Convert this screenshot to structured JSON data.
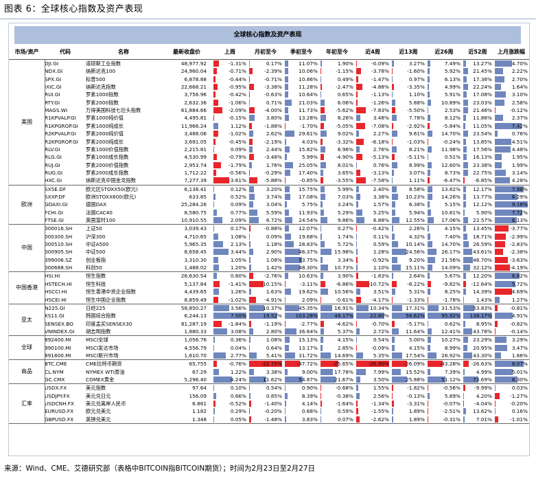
{
  "caption": "图表 6：全球核心指数及资产表现",
  "table_title": "全球核心指数及资产表现",
  "headers": [
    "市场/资产",
    "代码",
    "名称",
    "最新收盘价",
    "上周",
    "月初至今",
    "季初至今",
    "年初至今",
    "近4周",
    "近13周",
    "近26周",
    "近52周",
    "上月涨跌幅"
  ],
  "colors": {
    "positive_bar": "#6f87bd",
    "negative_bar": "#e8262b",
    "title_bg": "#aebedd"
  },
  "groups": [
    {
      "name": "美国",
      "rows": [
        {
          "code": "DJI.GI",
          "name": "道琼斯工业指数",
          "price": "48,977.92",
          "v": [
            "-1.31%",
            "0.17%",
            "11.07%",
            "1.90%",
            "-0.09%",
            "3.27%",
            "7.49%",
            "13.27%",
            "4.70%"
          ]
        },
        {
          "code": "NDX.GI",
          "name": "纳斯达克100",
          "price": "24,960.04",
          "v": [
            "-0.71%",
            "-2.39%",
            "10.06%",
            "-1.15%",
            "-3.78%",
            "-1.60%",
            "5.92%",
            "21.45%",
            "2.22%"
          ]
        },
        {
          "code": "SPX.GI",
          "name": "标普500",
          "price": "6,878.88",
          "v": [
            "-0.44%",
            "-0.71%",
            "10.86%",
            "0.49%",
            "-1.47%",
            "0.97%",
            "6.13%",
            "17.36%",
            "2.70%"
          ]
        },
        {
          "code": "IXIC.GI",
          "name": "纳斯达克指数",
          "price": "22,668.21",
          "v": [
            "-0.95%",
            "-3.38%",
            "11.28%",
            "-2.47%",
            "-4.88%",
            "-3.35%",
            "4.99%",
            "22.24%",
            "1.64%"
          ]
        },
        {
          "code": "RUI.GI",
          "name": "罗素1000指数",
          "price": "3,756.96",
          "v": [
            "-0.42%",
            "-0.63%",
            "10.64%",
            "0.65%",
            "-1.13%",
            "1.10%",
            "5.91%",
            "17.08%",
            "3.10%"
          ]
        },
        {
          "code": "RTY.GI",
          "name": "罗素2000指数",
          "price": "2,632.36",
          "v": [
            "-1.06%",
            "0.71%",
            "21.03%",
            "6.06%",
            "-1.26%",
            "5.88%",
            "10.89%",
            "23.03%",
            "2.58%"
          ]
        },
        {
          "code": "MAGS.WI",
          "name": "万得美国科技七巨头指数",
          "price": "61,884.66",
          "v": [
            "-2.09%",
            "-4.00%",
            "11.73%",
            "-5.62%",
            "-7.83%",
            "-5.50%",
            "2.53%",
            "21.46%",
            "-0.12%"
          ]
        },
        {
          "code": "R1KPVALP.GI",
          "name": "罗素1000纯价值",
          "price": "4,495.81",
          "v": [
            "-0.15%",
            "3.80%",
            "13.28%",
            "8.26%",
            "3.48%",
            "7.78%",
            "8.12%",
            "11.86%",
            "2.37%"
          ]
        },
        {
          "code": "R1KPGROP.GI",
          "name": "罗素1000纯成长",
          "price": "11,966.24",
          "v": [
            "1.12%",
            "-1.88%",
            "-1.70%",
            "-5.05%",
            "-7.08%",
            "-2.92%",
            "-5.84%",
            "11.05%",
            "7.42%"
          ]
        },
        {
          "code": "R2KPVALP.GI",
          "name": "罗素2000纯价值",
          "price": "3,488.06",
          "v": [
            "-1.02%",
            "2.62%",
            "29.61%",
            "9.02%",
            "2.27%",
            "9.61%",
            "14.70%",
            "23.54%",
            "0.76%"
          ]
        },
        {
          "code": "R2KPGROP.GI",
          "name": "罗素2000纯成长",
          "price": "3,691.05",
          "v": [
            "-0.45%",
            "-2.19%",
            "4.03%",
            "-3.32%",
            "-6.18%",
            "-1.03%",
            "-0.24%",
            "13.85%",
            "4.51%"
          ]
        },
        {
          "code": "RLV.GI",
          "name": "罗素1000价值指数",
          "price": "2,215.81",
          "v": [
            "0.09%",
            "2.44%",
            "15.82%",
            "6.96%",
            "2.76%",
            "8.21%",
            "11.98%",
            "17.56%",
            "4.48%"
          ]
        },
        {
          "code": "RLG.GI",
          "name": "罗素1000成长指数",
          "price": "4,530.99",
          "v": [
            "-0.79%",
            "-3.48%",
            "5.99%",
            "-4.90%",
            "-5.13%",
            "-5.11%",
            "0.51%",
            "16.13%",
            "1.95%"
          ]
        },
        {
          "code": "RUJ.GI",
          "name": "罗素2000价值指数",
          "price": "2,953.74",
          "v": [
            "-1.79%",
            "1.76%",
            "25.05%",
            "8.01%",
            "0.76%",
            "8.99%",
            "12.60%",
            "23.38%",
            "1.99%"
          ]
        },
        {
          "code": "RUG.GI",
          "name": "罗素2000成长指数",
          "price": "1,712.22",
          "v": [
            "-0.56%",
            "-0.29%",
            "17.40%",
            "3.65%",
            "-3.13%",
            "3.07%",
            "8.73%",
            "22.75%",
            "3.14%"
          ]
        },
        {
          "code": "HXC.GI",
          "name": "纳斯达克中国金龙指数",
          "price": "7,277.39",
          "v": [
            "-3.61%",
            "-5.88%",
            "-0.85%",
            "-3.55%",
            "-7.58%",
            "1.11%",
            "-6.47%",
            "-6.85%",
            "4.28%"
          ]
        }
      ]
    },
    {
      "name": "欧洲",
      "rows": [
        {
          "code": "SX5E.DF",
          "name": "欧元区STOXX50(欧元)",
          "price": "6,138.41",
          "v": [
            "0.12%",
            "3.20%",
            "15.75%",
            "5.99%",
            "2.40%",
            "8.58%",
            "13.82%",
            "12.17%",
            "7.98%"
          ]
        },
        {
          "code": "SXXP.DF",
          "name": "欧洲STOXX600(欧元)",
          "price": "633.85",
          "v": [
            "0.52%",
            "3.74%",
            "17.08%",
            "7.03%",
            "3.38%",
            "10.23%",
            "14.26%",
            "13.77%",
            "6.29%"
          ]
        },
        {
          "code": "GDAXI.GI",
          "name": "德国DAX",
          "price": "25,284.26",
          "v": [
            "0.09%",
            "3.04%",
            "5.75%",
            "3.24%",
            "1.57%",
            "6.38%",
            "5.15%",
            "12.12%",
            "9.16%"
          ]
        },
        {
          "code": "FCHI.GI",
          "name": "法国CAC40",
          "price": "8,580.75",
          "v": [
            "0.77%",
            "5.59%",
            "11.93%",
            "5.29%",
            "5.25%",
            "5.94%",
            "10.81%",
            "5.90%",
            "7.72%"
          ]
        },
        {
          "code": "FTSE.GI",
          "name": "英国富时100",
          "price": "10,910.55",
          "v": [
            "2.09%",
            "6.72%",
            "24.54%",
            "9.86%",
            "6.88%",
            "12.55%",
            "17.06%",
            "22.57%",
            "6.13%"
          ]
        }
      ]
    },
    {
      "name": "中国",
      "rows": [
        {
          "code": "000016.SH",
          "name": "上证50",
          "price": "3,039.43",
          "v": [
            "0.17%",
            "-0.88%",
            "12.07%",
            "0.27%",
            "-0.42%",
            "2.26%",
            "4.15%",
            "13.45%",
            "-3.77%"
          ]
        },
        {
          "code": "000300.SH",
          "name": "沪深300",
          "price": "4,710.65",
          "v": [
            "1.08%",
            "0.09%",
            "19.68%",
            "1.74%",
            "0.11%",
            "4.32%",
            "7.40%",
            "18.71%",
            "-2.99%"
          ]
        },
        {
          "code": "000510.SH",
          "name": "中证A500",
          "price": "5,965.35",
          "v": [
            "2.13%",
            "1.18%",
            "28.83%",
            "5.72%",
            "0.59%",
            "10.14%",
            "14.70%",
            "26.59%",
            "-2.83%"
          ]
        },
        {
          "code": "000905.SH",
          "name": "中证500",
          "price": "8,658.45",
          "v": [
            "3.44%",
            "2.90%",
            "46.37%",
            "15.98%",
            "1.28%",
            "24.56%",
            "26.17%",
            "43.61%",
            "-2.38%"
          ]
        },
        {
          "code": "399006.SZ",
          "name": "创业板指",
          "price": "3,310.30",
          "v": [
            "1.05%",
            "1.08%",
            "53.75%",
            "3.34%",
            "-0.92%",
            "9.20%",
            "21.56%",
            "46.70%",
            "-3.63%"
          ]
        },
        {
          "code": "000688.SH",
          "name": "科创50",
          "price": "1,488.02",
          "v": [
            "1.20%",
            "1.42%",
            "48.30%",
            "10.73%",
            "1.10%",
            "15.11%",
            "14.09%",
            "32.12%",
            "-4.19%"
          ]
        }
      ]
    },
    {
      "name": "中国香港",
      "rows": [
        {
          "code": "HSI.HI",
          "name": "恒生指数",
          "price": "26,630.54",
          "v": [
            "0.80%",
            "-2.76%",
            "10.63%",
            "3.90%",
            "-1.83%",
            "2.64%",
            "5.67%",
            "12.20%",
            "6.82%"
          ]
        },
        {
          "code": "HSTECH.HI",
          "name": "恒生科技",
          "price": "5,137.84",
          "v": [
            "-1.41%",
            "-10.15%",
            "-3.11%",
            "-6.86%",
            "-10.72%",
            "-8.22%",
            "-9.82%",
            "-12.64%",
            "5.72%"
          ]
        },
        {
          "code": "HSCCI.HI",
          "name": "恒生香港中资企业指数",
          "price": "4,439.65",
          "v": [
            "1.26%",
            "1.63%",
            "19.62%",
            "10.56%",
            "3.51%",
            "5.31%",
            "8.25%",
            "14.39%",
            "-4.69%"
          ]
        },
        {
          "code": "HSCEI.HI",
          "name": "恒生中国企业指数",
          "price": "8,859.49",
          "v": [
            "-1.02%",
            "-4.91%",
            "2.09%",
            "-0.61%",
            "-4.17%",
            "-1.33%",
            "-1.78%",
            "1.43%",
            "1.27%"
          ]
        }
      ]
    },
    {
      "name": "亚太",
      "rows": [
        {
          "code": "N225.GI",
          "name": "日经225",
          "price": "58,850.27",
          "v": [
            "3.56%",
            "10.37%",
            "45.35%",
            "16.91%",
            "10.34%",
            "17.31%",
            "31.53%",
            "53.83%",
            "-0.81%"
          ]
        },
        {
          "code": "KS11.GI",
          "name": "韩国综合指数",
          "price": "6,244.13",
          "v": [
            "7.50%",
            "19.52%",
            "103.28%",
            "48.17%",
            "22.80%",
            "56.62%",
            "95.92%",
            "138.17%",
            "4.91%"
          ]
        },
        {
          "code": "SENSEX.BO",
          "name": "印度孟买SENSEX30",
          "price": "81,287.19",
          "v": [
            "-1.84%",
            "-1.19%",
            "-2.77%",
            "-4.62%",
            "-0.70%",
            "-5.17%",
            "0.62%",
            "8.95%",
            "-0.82%"
          ]
        },
        {
          "code": "VNINDEX.GI",
          "name": "胡志明指数",
          "price": "1,880.33",
          "v": [
            "3.08%",
            "2.80%",
            "36.64%",
            "5.37%",
            "2.72%",
            "11.64%",
            "12.41%",
            "43.78%",
            "-0.14%"
          ]
        }
      ]
    },
    {
      "name": "全球",
      "rows": [
        {
          "code": "892400.MI",
          "name": "MSCI全球",
          "price": "1,056.76",
          "v": [
            "0.36%",
            "1.08%",
            "15.13%",
            "4.15%",
            "0.54%",
            "5.00%",
            "10.27%",
            "23.29%",
            "3.29%"
          ]
        },
        {
          "code": "990100.MI",
          "name": "MSCI发达市场",
          "price": "4,556.79",
          "v": [
            "0.04%",
            "0.64%",
            "13.17%",
            "2.85%",
            "-0.09%",
            "4.15%",
            "8.99%",
            "20.95%",
            "3.47%"
          ]
        },
        {
          "code": "891800.MI",
          "name": "MSCI新兴市场",
          "price": "1,610.70",
          "v": [
            "2.77%",
            "5.41%",
            "31.72%",
            "14.69%",
            "5.35%",
            "17.54%",
            "26.92%",
            "43.30%",
            "1.66%"
          ]
        }
      ]
    },
    {
      "name": "商品",
      "rows": [
        {
          "code": "BTC.CME",
          "name": "CME比特币期货",
          "price": "65,755",
          "v": [
            "-0.76%",
            "-22.75%",
            "-47.72%",
            "-25.65%",
            "-26.90%",
            "-26.09%",
            "-43.28%",
            "-26.63%",
            "8.07%"
          ]
        },
        {
          "code": "CL.NYM",
          "name": "NYMEX WTI原油",
          "price": "67.29",
          "v": [
            "1.22%",
            "3.38%",
            "9.00%",
            "17.78%",
            "7.99%",
            "15.52%",
            "7.39%",
            "4.99%",
            "5.01%"
          ]
        },
        {
          "code": "GC.CMX",
          "name": "COMEX黄金",
          "price": "5,296.40",
          "v": [
            "4.24%",
            "11.62%",
            "54.87%",
            "21.67%",
            "3.50%",
            "25.88%",
            "51.12%",
            "73.69%",
            "6.30%"
          ]
        }
      ]
    },
    {
      "name": "汇率",
      "rows": [
        {
          "code": "USDX.FX",
          "name": "美元指数",
          "price": "97.64",
          "v": [
            "0.10%",
            "0.54%",
            "0.90%",
            "-0.68%",
            "1.55%",
            "-1.82%",
            "-0.56%",
            "-9.99%",
            "0.03%"
          ]
        },
        {
          "code": "USDJPY.FX",
          "name": "美元兑日元",
          "price": "156.09",
          "v": [
            "0.66%",
            "0.85%",
            "8.39%",
            "-0.38%",
            "2.56%",
            "-0.13%",
            "5.89%",
            "4.20%",
            "-1.27%"
          ]
        },
        {
          "code": "USDCNH.FX",
          "name": "美元兑离岸人民币",
          "price": "6.861",
          "v": [
            "-0.52%",
            "-1.40%",
            "4.14%",
            "-1.64%",
            "-1.34%",
            "-3.31%",
            "-0.07%",
            "-4.04%",
            "-0.20%"
          ]
        },
        {
          "code": "EURUSD.FX",
          "name": "欧元兑美元",
          "price": "1.182",
          "v": [
            "0.29%",
            "-0.20%",
            "0.68%",
            "0.59%",
            "-1.55%",
            "1.89%",
            "-2.51%",
            "13.62%",
            "0.16%"
          ]
        },
        {
          "code": "GBPUSD.FX",
          "name": "英镑兑美元",
          "price": "1.348",
          "v": [
            "0.05%",
            "-1.48%",
            "3.83%",
            "0.07%",
            "-2.62%",
            "1.89%",
            "-0.31%",
            "7.01%",
            "-1.01%"
          ]
        }
      ]
    }
  ],
  "source": "来源：Wind、CME、艾德研究部（表格中BITCOIN指BITCOIN期货）；时间为2月23日至2月27日"
}
